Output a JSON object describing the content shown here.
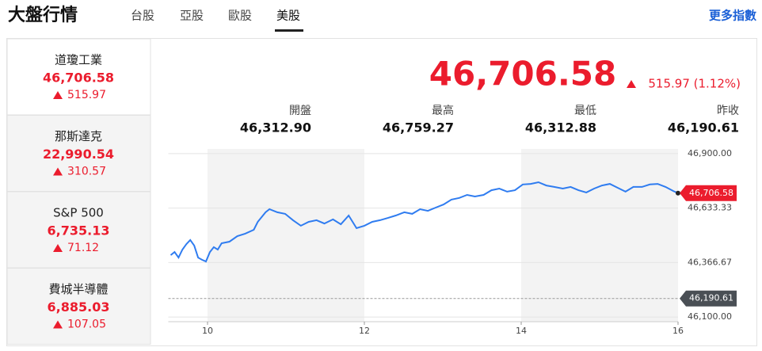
{
  "header": {
    "title": "大盤行情",
    "tabs": [
      "台股",
      "亞股",
      "歐股",
      "美股"
    ],
    "more": "更多指數"
  },
  "sidebar": [
    {
      "name": "道瓊工業",
      "value": "46,706.58",
      "change": "515.97"
    },
    {
      "name": "那斯達克",
      "value": "22,990.54",
      "change": "310.57"
    },
    {
      "name": "S&P 500",
      "value": "6,735.13",
      "change": "71.12"
    },
    {
      "name": "費城半導體",
      "value": "6,885.03",
      "change": "107.05"
    }
  ],
  "summary": {
    "price": "46,706.58",
    "change": "515.97 (1.12%)",
    "stats": [
      {
        "label": "開盤",
        "value": "46,312.90"
      },
      {
        "label": "最高",
        "value": "46,759.27"
      },
      {
        "label": "最低",
        "value": "46,312.88"
      },
      {
        "label": "昨收",
        "value": "46,190.61"
      }
    ]
  },
  "chart_data": {
    "type": "line",
    "color": "#2f7cf0",
    "x": [
      9.53,
      9.58,
      9.63,
      9.68,
      9.73,
      9.78,
      9.83,
      9.88,
      9.93,
      9.98,
      10.03,
      10.08,
      10.13,
      10.18,
      10.28,
      10.38,
      10.48,
      10.59,
      10.64,
      10.74,
      10.79,
      10.89,
      10.99,
      11.09,
      11.19,
      11.29,
      11.39,
      11.49,
      11.6,
      11.7,
      11.8,
      11.9,
      12.0,
      12.1,
      12.2,
      12.3,
      12.4,
      12.51,
      12.61,
      12.71,
      12.81,
      12.91,
      13.01,
      13.11,
      13.21,
      13.31,
      13.41,
      13.52,
      13.62,
      13.72,
      13.82,
      13.92,
      14.02,
      14.12,
      14.22,
      14.32,
      14.42,
      14.53,
      14.63,
      14.73,
      14.83,
      14.93,
      15.03,
      15.13,
      15.23,
      15.33,
      15.43,
      15.54,
      15.64,
      15.74,
      15.84,
      15.94,
      16.0
    ],
    "values": [
      46403,
      46418,
      46391,
      46430,
      46457,
      46477,
      46450,
      46391,
      46380,
      46372,
      46418,
      46442,
      46430,
      46461,
      46469,
      46496,
      46508,
      46527,
      46566,
      46613,
      46628,
      46613,
      46605,
      46574,
      46547,
      46566,
      46574,
      46558,
      46578,
      46554,
      46597,
      46535,
      46547,
      46566,
      46574,
      46585,
      46597,
      46613,
      46605,
      46628,
      46620,
      46636,
      46651,
      46675,
      46683,
      46698,
      46690,
      46698,
      46721,
      46729,
      46714,
      46721,
      46749,
      46752,
      46760,
      46744,
      46737,
      46729,
      46737,
      46721,
      46710,
      46729,
      46744,
      46752,
      46733,
      46714,
      46737,
      46737,
      46749,
      46752,
      46737,
      46717,
      46706.58
    ],
    "xlim": [
      9.5,
      16
    ],
    "xticks": [
      10,
      12,
      14,
      16
    ],
    "ylim": [
      46077,
      46923
    ],
    "yticks": [
      {
        "value": 46900,
        "label": "46,900.00"
      },
      {
        "value": 46633.33,
        "label": "46,633.33"
      },
      {
        "value": 46366.67,
        "label": "46,366.67"
      },
      {
        "value": 46100,
        "label": "46,100.00"
      }
    ],
    "reference": {
      "value": 46190.61,
      "label": "46,190.61"
    },
    "up_color": "#eb1c2d"
  }
}
